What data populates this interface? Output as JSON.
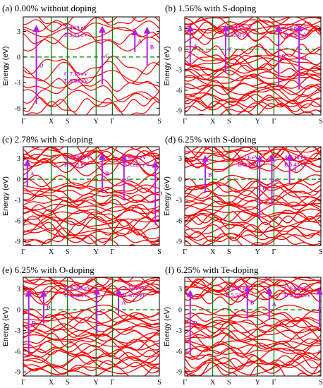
{
  "colors": {
    "bands": "#ff0000",
    "kpath": "#008000",
    "fermi": "#009000",
    "arrow": "#b21fe0",
    "frame": "#000000"
  },
  "chart_data": [
    {
      "type": "band-structure",
      "title": "(a) 0.00% without doping",
      "ylabel": "Energy (eV)",
      "ylim": [
        -6.8,
        4.7
      ],
      "yticks": [
        -6,
        -3,
        0,
        3
      ],
      "kpoints": [
        "Γ",
        "X",
        "S",
        "Y",
        "Γ",
        "S"
      ],
      "fermi_level": 0,
      "annotations": [
        {
          "text": "A 4.19 eV",
          "at": "upper-left"
        },
        {
          "text": "B 5.55 eV",
          "at": "upper-left"
        },
        {
          "text": "C 7.15 eV",
          "at": "lower-left"
        },
        {
          "text": "D 9.00 eV",
          "at": "lower-left"
        }
      ],
      "transitions": [
        {
          "label": "D",
          "k": 0.48,
          "from": -5.5,
          "to": 3.6
        },
        {
          "label": "C",
          "k": 2.9,
          "from": -3.2,
          "to": 3.5
        },
        {
          "label": "A",
          "k": 4.1,
          "from": 0.6,
          "to": 3.2
        },
        {
          "label": "B",
          "k": 4.55,
          "from": -1.0,
          "to": 3.4
        }
      ]
    },
    {
      "type": "band-structure",
      "title": "(b) 1.56% with S-doping",
      "ylabel": "Energy (eV)",
      "ylim": [
        -9.6,
        4.7
      ],
      "yticks": [
        -9,
        -6,
        -3,
        0,
        3
      ],
      "kpoints": [
        "Γ",
        "X",
        "S",
        "Y",
        "Γ",
        "S"
      ],
      "fermi_level": 0,
      "annotations": [
        {
          "text": "A 4.157 eV",
          "at": "upper-left"
        },
        {
          "text": "B 5.58 eV",
          "at": "upper-left"
        },
        {
          "text": "C 6.62 eV",
          "at": "upper-right"
        },
        {
          "text": "D 9.25 eV",
          "at": "upper-right"
        }
      ],
      "transitions": [
        {
          "label": "A",
          "k": 0.2,
          "from": -2.4,
          "to": 3.4
        },
        {
          "label": "C",
          "k": 1.5,
          "from": -3.5,
          "to": 3.4
        },
        {
          "label": "B",
          "k": 3.45,
          "from": -5.5,
          "to": 3.4
        },
        {
          "label": "D",
          "k": 4.2,
          "from": -5.9,
          "to": 3.4
        }
      ]
    },
    {
      "type": "band-structure",
      "title": "(c) 2.78% with S-doping",
      "ylabel": "Energy (eV)",
      "ylim": [
        -9.6,
        4.7
      ],
      "yticks": [
        -9,
        -6,
        -3,
        0,
        3
      ],
      "kpoints": [
        "Γ",
        "X",
        "S",
        "Y",
        "Γ",
        "S"
      ],
      "fermi_level": 0,
      "annotations": [
        {
          "text": "A 3.796 eV",
          "at": "upper-left"
        },
        {
          "text": "B 5.51 eV",
          "at": "upper-left"
        },
        {
          "text": "C 6.57 eV",
          "at": "upper-right"
        },
        {
          "text": "D 9.225 eV",
          "at": "upper-right"
        }
      ],
      "transitions": [
        {
          "label": "A",
          "k": 0.15,
          "from": -1.2,
          "to": 2.7
        },
        {
          "label": "B",
          "k": 2.9,
          "from": -2.0,
          "to": 3.6
        },
        {
          "label": "C",
          "k": 3.7,
          "from": -3.1,
          "to": 3.4
        },
        {
          "label": "D",
          "k": 4.85,
          "from": -6.6,
          "to": 2.5
        }
      ]
    },
    {
      "type": "band-structure",
      "title": "(d) 6.25% with S-doping",
      "ylabel": "Energy (eV)",
      "ylim": [
        -9.6,
        4.7
      ],
      "yticks": [
        -9,
        -6,
        -3,
        0,
        3
      ],
      "kpoints": [
        "Γ",
        "X",
        "S",
        "Y",
        "Γ",
        "S"
      ],
      "fermi_level": 0,
      "annotations": [
        {
          "text": "C 7.6 eV",
          "at": "upper-center"
        },
        {
          "text": "D 9.2 eV",
          "at": "upper-center"
        },
        {
          "text": "A 4.16 eV",
          "at": "upper-right"
        },
        {
          "text": "B 5.42 eV",
          "at": "upper-right"
        }
      ],
      "transitions": [
        {
          "label": "B",
          "k": 0.75,
          "from": -2.0,
          "to": 3.3
        },
        {
          "label": "D",
          "k": 2.75,
          "from": -5.9,
          "to": 3.3
        },
        {
          "label": "C",
          "k": 3.2,
          "from": -3.7,
          "to": 3.4
        },
        {
          "label": "A",
          "k": 3.85,
          "from": -0.6,
          "to": 3.5
        }
      ]
    },
    {
      "type": "band-structure",
      "title": "(e) 6.25% with O-doping",
      "ylabel": "Energy (eV)",
      "ylim": [
        -9.6,
        4.7
      ],
      "yticks": [
        -9,
        -6,
        -3,
        0,
        3
      ],
      "kpoints": [
        "Γ",
        "X",
        "S",
        "Y",
        "Γ",
        "S"
      ],
      "fermi_level": 0,
      "annotations": [
        {
          "text": "D 9.298 eV",
          "at": "upper-left"
        },
        {
          "text": "C 6.43 eV",
          "at": "upper-left"
        },
        {
          "text": "A 3.81 eV",
          "at": "upper-right"
        },
        {
          "text": "B 4.73 eV",
          "at": "upper-right"
        }
      ],
      "transitions": [
        {
          "label": "D",
          "k": 0.2,
          "from": -6.5,
          "to": 2.7
        },
        {
          "label": "B",
          "k": 0.75,
          "from": -2.0,
          "to": 2.7
        },
        {
          "label": "C",
          "k": 2.7,
          "from": -3.4,
          "to": 3.0
        },
        {
          "label": "A",
          "k": 3.5,
          "from": -0.8,
          "to": 2.9
        }
      ]
    },
    {
      "type": "band-structure",
      "title": "(f) 6.25% with Te-doping",
      "ylabel": "Energy (eV)",
      "ylim": [
        -9.6,
        4.7
      ],
      "yticks": [
        -9,
        -6,
        -3,
        0,
        3
      ],
      "kpoints": [
        "Γ",
        "X",
        "S",
        "Y",
        "Γ",
        "S"
      ],
      "fermi_level": 0,
      "annotations": [
        {
          "text": "A 3.96 eV",
          "at": "upper-left"
        },
        {
          "text": "B 5.54 eV",
          "at": "upper-left"
        },
        {
          "text": "C 6.68 eV",
          "at": "upper-right"
        },
        {
          "text": "D 9.163 eV",
          "at": "upper-right"
        }
      ],
      "transitions": [
        {
          "label": "D",
          "k": 0.2,
          "from": -6.5,
          "to": 2.7
        },
        {
          "label": "B",
          "k": 2.3,
          "from": -1.3,
          "to": 3.4
        },
        {
          "label": "A",
          "k": 3.1,
          "from": -1.5,
          "to": 3.1
        },
        {
          "label": "C",
          "k": 4.95,
          "from": -2.4,
          "to": 3.0
        }
      ]
    }
  ]
}
